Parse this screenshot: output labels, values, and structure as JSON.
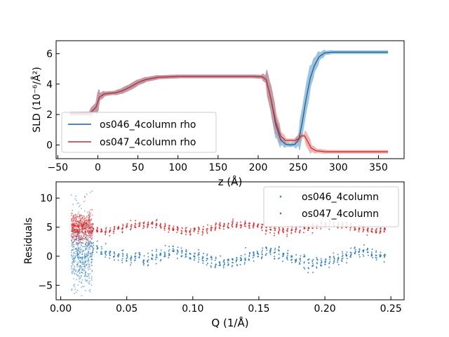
{
  "chart_data": [
    {
      "type": "line",
      "xlabel": "z (Å)",
      "ylabel": "SLD (10⁻⁶/Å²)",
      "xlim": [
        -52,
        382
      ],
      "ylim": [
        -0.9,
        6.85
      ],
      "xticks": [
        -50,
        0,
        50,
        100,
        150,
        200,
        250,
        300,
        350
      ],
      "xtick_labels": [
        "−50",
        "0",
        "50",
        "100",
        "150",
        "200",
        "250",
        "300",
        "350"
      ],
      "yticks": [
        0,
        2,
        4,
        6
      ],
      "ytick_labels": [
        "0",
        "2",
        "4",
        "6"
      ],
      "legend_position": "lower-left",
      "grid": false,
      "series": [
        {
          "name": "os046_4column rho",
          "color": "#1f5f94",
          "band_color": "#4b93c8",
          "points": [
            [
              -35,
              2.05
            ],
            [
              -10,
              2.07
            ],
            [
              -2,
              2.5
            ],
            [
              2,
              3.15
            ],
            [
              8,
              3.35
            ],
            [
              15,
              3.4
            ],
            [
              22,
              3.43
            ],
            [
              30,
              3.55
            ],
            [
              40,
              3.8
            ],
            [
              50,
              4.1
            ],
            [
              60,
              4.3
            ],
            [
              75,
              4.45
            ],
            [
              100,
              4.5
            ],
            [
              150,
              4.5
            ],
            [
              195,
              4.5
            ],
            [
              205,
              4.48
            ],
            [
              210,
              4.3
            ],
            [
              216,
              3.0
            ],
            [
              222,
              1.3
            ],
            [
              228,
              0.35
            ],
            [
              234,
              0.05
            ],
            [
              240,
              0.0
            ],
            [
              246,
              0.05
            ],
            [
              251,
              0.4
            ],
            [
              255,
              1.5
            ],
            [
              260,
              3.1
            ],
            [
              265,
              4.4
            ],
            [
              270,
              5.2
            ],
            [
              276,
              5.8
            ],
            [
              283,
              6.05
            ],
            [
              292,
              6.1
            ],
            [
              320,
              6.1
            ],
            [
              362,
              6.1
            ]
          ]
        },
        {
          "name": "os047_4column rho",
          "color": "#c62e2e",
          "band_color": "#e27878",
          "points": [
            [
              -35,
              2.05
            ],
            [
              -10,
              2.07
            ],
            [
              -2,
              2.5
            ],
            [
              2,
              3.15
            ],
            [
              8,
              3.35
            ],
            [
              15,
              3.4
            ],
            [
              22,
              3.43
            ],
            [
              30,
              3.55
            ],
            [
              40,
              3.8
            ],
            [
              50,
              4.1
            ],
            [
              60,
              4.3
            ],
            [
              75,
              4.45
            ],
            [
              100,
              4.5
            ],
            [
              150,
              4.5
            ],
            [
              195,
              4.5
            ],
            [
              205,
              4.48
            ],
            [
              210,
              4.3
            ],
            [
              216,
              3.0
            ],
            [
              222,
              1.5
            ],
            [
              228,
              0.6
            ],
            [
              234,
              0.3
            ],
            [
              240,
              0.3
            ],
            [
              246,
              0.3
            ],
            [
              250,
              0.4
            ],
            [
              254,
              0.6
            ],
            [
              258,
              0.6
            ],
            [
              262,
              0.2
            ],
            [
              266,
              -0.2
            ],
            [
              272,
              -0.38
            ],
            [
              285,
              -0.45
            ],
            [
              320,
              -0.45
            ],
            [
              362,
              -0.45
            ]
          ]
        }
      ]
    },
    {
      "type": "scatter",
      "xlabel": "Q (1/Å)",
      "ylabel": "Residuals",
      "xlim": [
        -0.0035,
        0.26
      ],
      "ylim": [
        -7.5,
        12.8
      ],
      "xticks": [
        0.0,
        0.05,
        0.1,
        0.15,
        0.2,
        0.25
      ],
      "xtick_labels": [
        "0.00",
        "0.05",
        "0.10",
        "0.15",
        "0.20",
        "0.25"
      ],
      "yticks": [
        -5,
        0,
        5,
        10
      ],
      "ytick_labels": [
        "−5",
        "0",
        "5",
        "10"
      ],
      "legend_position": "upper-right",
      "grid": false,
      "q_range": [
        0.008,
        0.248
      ],
      "series": [
        {
          "name": "os046_4column",
          "color": "#1f77b4",
          "center": 0.0,
          "spread": 1.5,
          "low_q_spread": 3.5
        },
        {
          "name": "os047_4column",
          "color": "#d62728",
          "center": 5.0,
          "spread": 0.9,
          "low_q_spread": 1.4
        }
      ]
    }
  ]
}
